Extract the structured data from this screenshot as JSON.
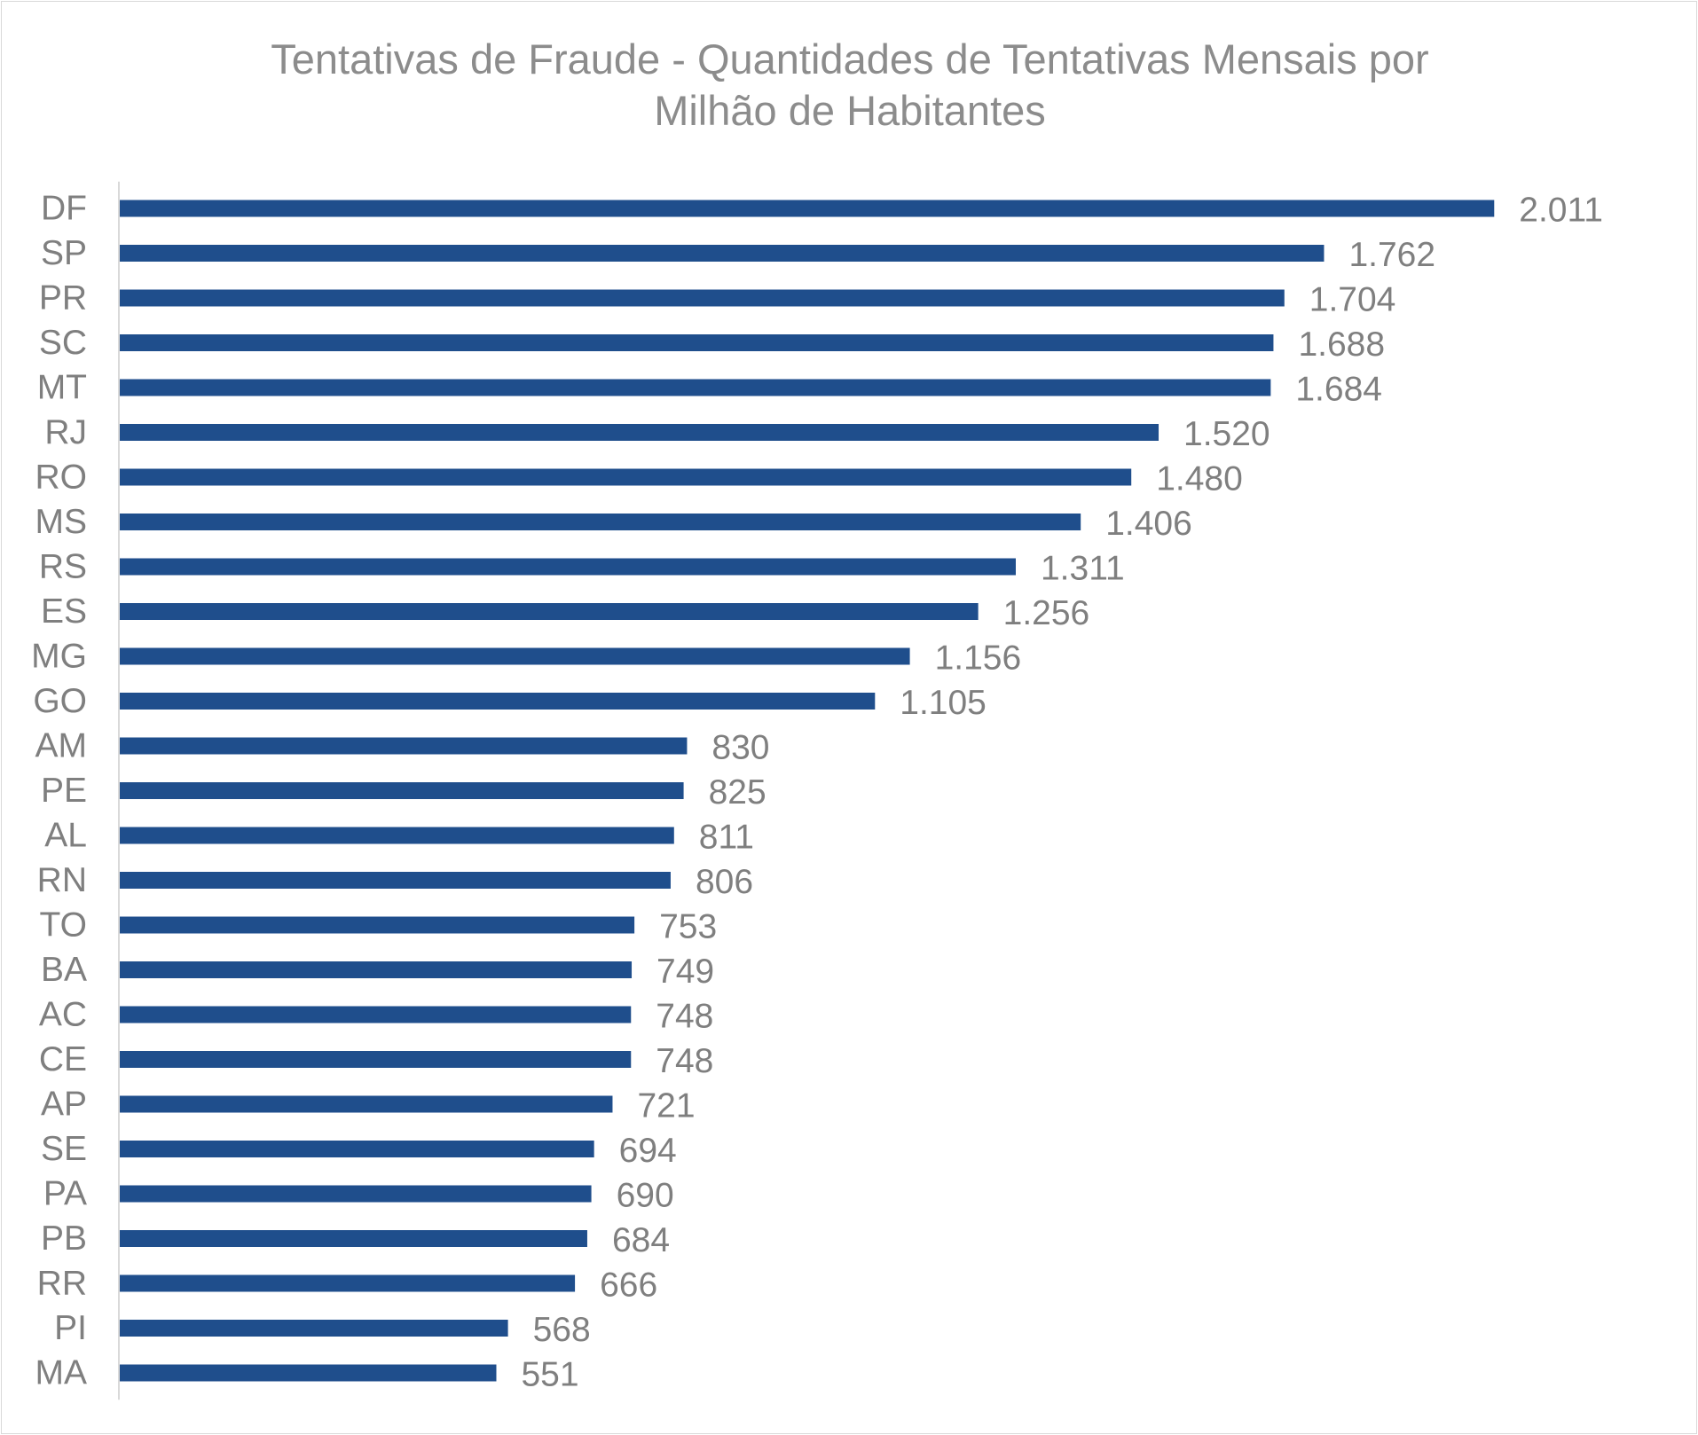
{
  "chart_data": {
    "type": "bar",
    "orientation": "horizontal",
    "title_lines": [
      "Tentativas de Fraude - Quantidades de Tentativas Mensais por",
      "Milhão de Habitantes"
    ],
    "categories": [
      "DF",
      "SP",
      "PR",
      "SC",
      "MT",
      "RJ",
      "RO",
      "MS",
      "RS",
      "ES",
      "MG",
      "GO",
      "AM",
      "PE",
      "AL",
      "RN",
      "TO",
      "BA",
      "AC",
      "CE",
      "AP",
      "SE",
      "PA",
      "PB",
      "RR",
      "PI",
      "MA"
    ],
    "values": [
      2011,
      1762,
      1704,
      1688,
      1684,
      1520,
      1480,
      1406,
      1311,
      1256,
      1156,
      1105,
      830,
      825,
      811,
      806,
      753,
      749,
      748,
      748,
      721,
      694,
      690,
      684,
      666,
      568,
      551
    ],
    "value_labels": [
      "2.011",
      "1.762",
      "1.704",
      "1.688",
      "1.684",
      "1.520",
      "1.480",
      "1.406",
      "1.311",
      "1.256",
      "1.156",
      "1.105",
      "830",
      "825",
      "811",
      "806",
      "753",
      "749",
      "748",
      "748",
      "721",
      "694",
      "690",
      "684",
      "666",
      "568",
      "551"
    ],
    "xlim": [
      0,
      2230
    ],
    "grid": false,
    "legend": "none",
    "bar_color": "#1f4e8c",
    "text_color": "#7f7f7f",
    "axis_color": "#d9d9d9"
  }
}
